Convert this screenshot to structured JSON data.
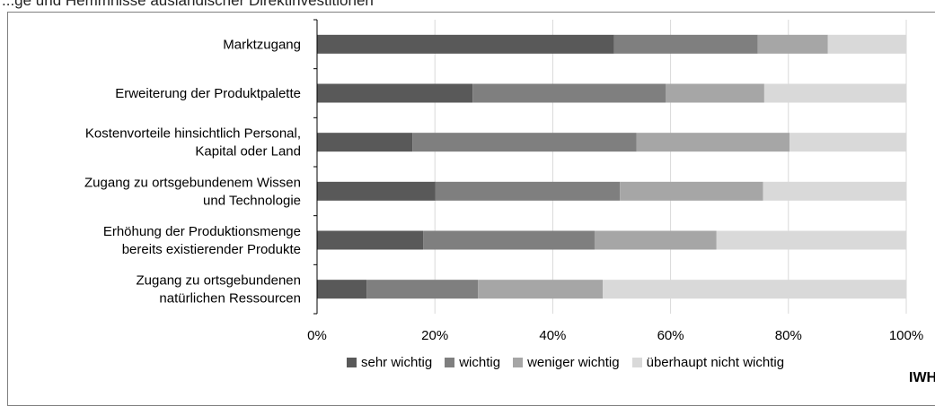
{
  "caption": "...ge und Hemmnisse ausländischer Direktinvestitionen",
  "source_label": "IWH",
  "chart_data": {
    "type": "bar",
    "orientation": "horizontal",
    "stacked": true,
    "categories": [
      [
        "Marktzugang"
      ],
      [
        "Erweiterung der Produktpalette"
      ],
      [
        "Kostenvorteile hinsichtlich Personal,",
        "Kapital oder Land"
      ],
      [
        "Zugang zu ortsgebundenem Wissen",
        "und Technologie"
      ],
      [
        "Erhöhung der Produktionsmenge",
        "bereits existierender Produkte"
      ],
      [
        "Zugang zu ortsgebundenen",
        "natürlichen Ressourcen"
      ]
    ],
    "series": [
      {
        "name": "sehr wichtig",
        "color": "#595959",
        "values": [
          50.4,
          26.4,
          16.2,
          20.1,
          18.0,
          8.4
        ]
      },
      {
        "name": "wichtig",
        "color": "#7f7f7f",
        "values": [
          24.4,
          32.8,
          38.0,
          31.3,
          29.1,
          18.9
        ]
      },
      {
        "name": "weniger wichtig",
        "color": "#a6a6a6",
        "values": [
          11.9,
          16.7,
          26.0,
          24.3,
          20.7,
          21.2
        ]
      },
      {
        "name": "überhaupt nicht wichtig",
        "color": "#d9d9d9",
        "values": [
          13.3,
          24.1,
          19.8,
          24.3,
          32.2,
          51.5
        ]
      }
    ],
    "xlim": [
      0,
      100
    ],
    "x_ticks": [
      "0%",
      "20%",
      "40%",
      "60%",
      "80%",
      "100%"
    ],
    "grid": true,
    "legend_position": "bottom"
  }
}
